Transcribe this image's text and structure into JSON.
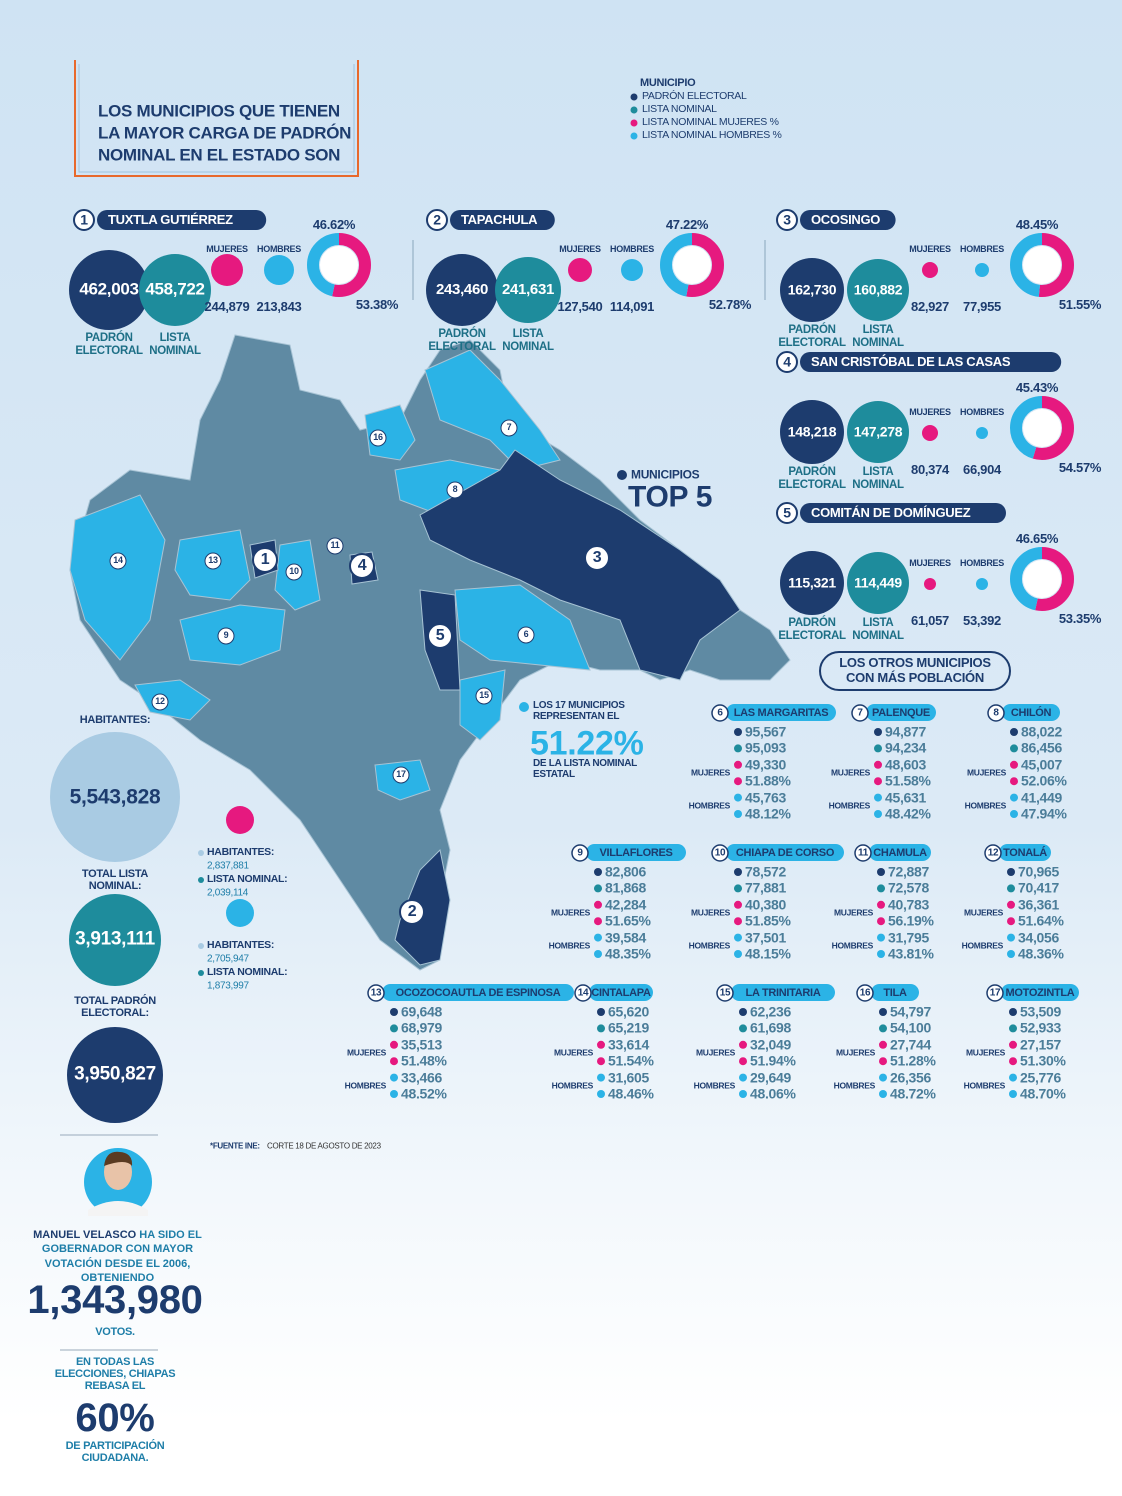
{
  "header": {
    "title_lines": [
      "LOS MUNICIPIOS QUE TIENEN",
      "LA MAYOR CARGA DE PADRÓN",
      "NOMINAL EN EL ESTADO SON"
    ]
  },
  "legend": {
    "title": "MUNICIPIO",
    "items": [
      {
        "label": "PADRÓN ELECTORAL",
        "color": "#1d3c6e"
      },
      {
        "label": "LISTA NOMINAL",
        "color": "#1e8c9c"
      },
      {
        "label": "LISTA NOMINAL MUJERES %",
        "color": "#e6197f"
      },
      {
        "label": "LISTA NOMINAL HOMBRES %",
        "color": "#2bb3e6"
      }
    ]
  },
  "labels": {
    "padron": "PADRÓN ELECTORAL",
    "lista": "LISTA NOMINAL",
    "mujeres": "MUJERES",
    "hombres": "HOMBRES"
  },
  "top5": [
    {
      "rank": "1",
      "name": "TUXTLA GUTIÉRREZ",
      "padron": "462,003",
      "lista": "458,722",
      "mujeres": "244,879",
      "hombres": "213,843",
      "hombres_pct": {
        "value": 46.62,
        "label": "46.62%"
      },
      "mujeres_pct": {
        "value": 53.38,
        "label": "53.38%"
      }
    },
    {
      "rank": "2",
      "name": "TAPACHULA",
      "padron": "243,460",
      "lista": "241,631",
      "mujeres": "127,540",
      "hombres": "114,091",
      "hombres_pct": {
        "value": 47.22,
        "label": "47.22%"
      },
      "mujeres_pct": {
        "value": 52.78,
        "label": "52.78%"
      }
    },
    {
      "rank": "3",
      "name": "OCOSINGO",
      "padron": "162,730",
      "lista": "160,882",
      "mujeres": "82,927",
      "hombres": "77,955",
      "hombres_pct": {
        "value": 48.45,
        "label": "48.45%"
      },
      "mujeres_pct": {
        "value": 51.55,
        "label": "51.55%"
      }
    },
    {
      "rank": "4",
      "name": "SAN CRISTÓBAL DE LAS CASAS",
      "padron": "148,218",
      "lista": "147,278",
      "mujeres": "80,374",
      "hombres": "66,904",
      "hombres_pct": {
        "value": 45.43,
        "label": "45.43%"
      },
      "mujeres_pct": {
        "value": 54.57,
        "label": "54.57%"
      }
    },
    {
      "rank": "5",
      "name": "COMITÁN DE DOMÍNGUEZ",
      "padron": "115,321",
      "lista": "114,449",
      "mujeres": "61,057",
      "hombres": "53,392",
      "hombres_pct": {
        "value": 46.65,
        "label": "46.65%"
      },
      "mujeres_pct": {
        "value": 53.35,
        "label": "53.35%"
      }
    }
  ],
  "map": {
    "top_label": "MUNICIPIOS",
    "top_big": "TOP 5",
    "share_text": "LOS 17 MUNICIPIOS REPRESENTAN EL",
    "share_value": "51.22%",
    "share_tail": "DE LA LISTA NOMINAL ESTATAL"
  },
  "others_title": [
    "LOS OTROS MUNICIPIOS",
    "CON MÁS POBLACIÓN"
  ],
  "others": [
    {
      "rank": "6",
      "name": "LAS MARGARITAS",
      "values": [
        "95,567",
        "95,093",
        "49,330",
        "51.88%",
        "45,763",
        "48.12%"
      ]
    },
    {
      "rank": "7",
      "name": "PALENQUE",
      "values": [
        "94,877",
        "94,234",
        "48,603",
        "51.58%",
        "45,631",
        "48.42%"
      ]
    },
    {
      "rank": "8",
      "name": "CHILÓN",
      "values": [
        "88,022",
        "86,456",
        "45,007",
        "52.06%",
        "41,449",
        "47.94%"
      ]
    },
    {
      "rank": "9",
      "name": "VILLAFLORES",
      "values": [
        "82,806",
        "81,868",
        "42,284",
        "51.65%",
        "39,584",
        "48.35%"
      ]
    },
    {
      "rank": "10",
      "name": "CHIAPA DE CORSO",
      "values": [
        "78,572",
        "77,881",
        "40,380",
        "51.85%",
        "37,501",
        "48.15%"
      ]
    },
    {
      "rank": "11",
      "name": "CHAMULA",
      "values": [
        "72,887",
        "72,578",
        "40,783",
        "56.19%",
        "31,795",
        "43.81%"
      ]
    },
    {
      "rank": "12",
      "name": "TONALÁ",
      "values": [
        "70,965",
        "70,417",
        "36,361",
        "51.64%",
        "34,056",
        "48.36%"
      ]
    },
    {
      "rank": "13",
      "name": "OCOZOCOAUTLA DE ESPINOSA",
      "values": [
        "69,648",
        "68,979",
        "35,513",
        "51.48%",
        "33,466",
        "48.52%"
      ]
    },
    {
      "rank": "14",
      "name": "CINTALAPA",
      "values": [
        "65,620",
        "65,219",
        "33,614",
        "51.54%",
        "31,605",
        "48.46%"
      ]
    },
    {
      "rank": "15",
      "name": "LA TRINITARIA",
      "values": [
        "62,236",
        "61,698",
        "32,049",
        "51.94%",
        "29,649",
        "48.06%"
      ]
    },
    {
      "rank": "16",
      "name": "TILA",
      "values": [
        "54,797",
        "54,100",
        "27,744",
        "51.28%",
        "26,356",
        "48.72%"
      ]
    },
    {
      "rank": "17",
      "name": "MOTOZINTLA",
      "values": [
        "53,509",
        "52,933",
        "27,157",
        "51.30%",
        "25,776",
        "48.70%"
      ]
    }
  ],
  "stats": {
    "habitantes_label": "HABITANTES:",
    "habitantes": "5,543,828",
    "lista_label": "TOTAL LISTA NOMINAL:",
    "lista": "3,913,111",
    "padron_label": "TOTAL PADRÓN ELECTORAL:",
    "padron": "3,950,827"
  },
  "gender": {
    "labels": {
      "habitantes": "HABITANTES:",
      "lista": "LISTA NOMINAL:"
    },
    "women": {
      "habitantes": "2,837,881",
      "lista": "2,039,114"
    },
    "men": {
      "habitantes": "2,705,947",
      "lista": "1,873,997"
    }
  },
  "source": {
    "label": "*FUENTE INE:",
    "text": "CORTE 18 DE AGOSTO DE 2023"
  },
  "governor": {
    "name": "MANUEL VELASCO",
    "text": "HA SIDO EL GOBERNADOR CON MAYOR VOTACIÓN DESDE EL 2006, OBTENIENDO",
    "votes": "1,343,980",
    "unit": "VOTOS."
  },
  "participation": {
    "text": "EN TODAS LAS ELECCIONES, CHIAPAS REBASA EL",
    "value": "60%",
    "unit": "DE PARTICIPACIÓN CIUDADANA."
  }
}
